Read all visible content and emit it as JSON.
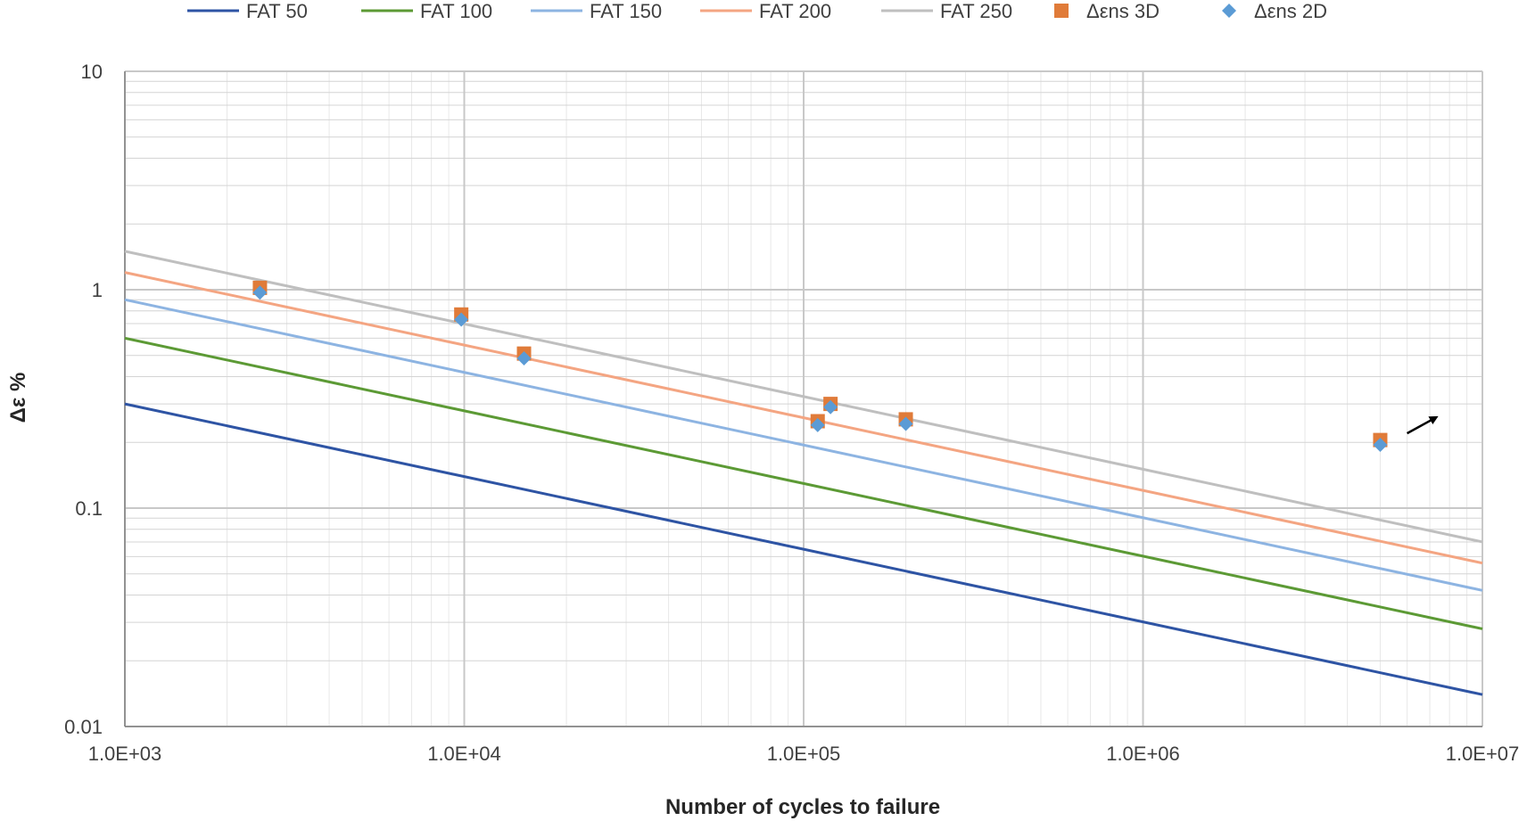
{
  "chart_data": {
    "type": "line+scatter",
    "x_scale": "log",
    "y_scale": "log",
    "xlim": [
      1000,
      10000000
    ],
    "ylim": [
      0.01,
      10
    ],
    "xlabel": "Number of cycles to failure",
    "ylabel": "Δε %",
    "x_tick_values": [
      1000,
      10000,
      100000,
      1000000,
      10000000
    ],
    "x_tick_labels": [
      "1.0E+03",
      "1.0E+04",
      "1.0E+05",
      "1.0E+06",
      "1.0E+07"
    ],
    "y_tick_values": [
      0.01,
      0.1,
      1,
      10
    ],
    "y_tick_labels": [
      "0.01",
      "0.1",
      "1",
      "10"
    ],
    "legend_position": "top",
    "series": [
      {
        "name": "FAT 50",
        "kind": "line",
        "color": "#2e54a4",
        "x": [
          1000,
          10000000
        ],
        "y": [
          0.3,
          0.014
        ]
      },
      {
        "name": "FAT 100",
        "kind": "line",
        "color": "#5c9a35",
        "x": [
          1000,
          10000000
        ],
        "y": [
          0.6,
          0.028
        ]
      },
      {
        "name": "FAT 150",
        "kind": "line",
        "color": "#8db4e2",
        "x": [
          1000,
          10000000
        ],
        "y": [
          0.9,
          0.042
        ]
      },
      {
        "name": "FAT 200",
        "kind": "line",
        "color": "#f4a582",
        "x": [
          1000,
          10000000
        ],
        "y": [
          1.2,
          0.056
        ]
      },
      {
        "name": "FAT 250",
        "kind": "line",
        "color": "#bfbfbf",
        "x": [
          1000,
          10000000
        ],
        "y": [
          1.5,
          0.07
        ]
      },
      {
        "name": "Δεns 3D",
        "kind": "scatter",
        "marker": "square",
        "color": "#e07b39",
        "x": [
          2500,
          9800,
          15000,
          110000,
          120000,
          200000,
          5000000
        ],
        "y": [
          1.02,
          0.77,
          0.51,
          0.25,
          0.3,
          0.255,
          0.205
        ]
      },
      {
        "name": "Δεns 2D",
        "kind": "scatter",
        "marker": "diamond",
        "color": "#5b9bd5",
        "x": [
          2500,
          9800,
          15000,
          110000,
          120000,
          200000,
          5000000
        ],
        "y": [
          0.97,
          0.73,
          0.485,
          0.24,
          0.29,
          0.243,
          0.195
        ]
      }
    ],
    "annotations": [
      {
        "type": "arrow",
        "description": "runout arrow",
        "from": [
          6000000,
          0.22
        ],
        "to": [
          7300000,
          0.26
        ]
      }
    ]
  }
}
